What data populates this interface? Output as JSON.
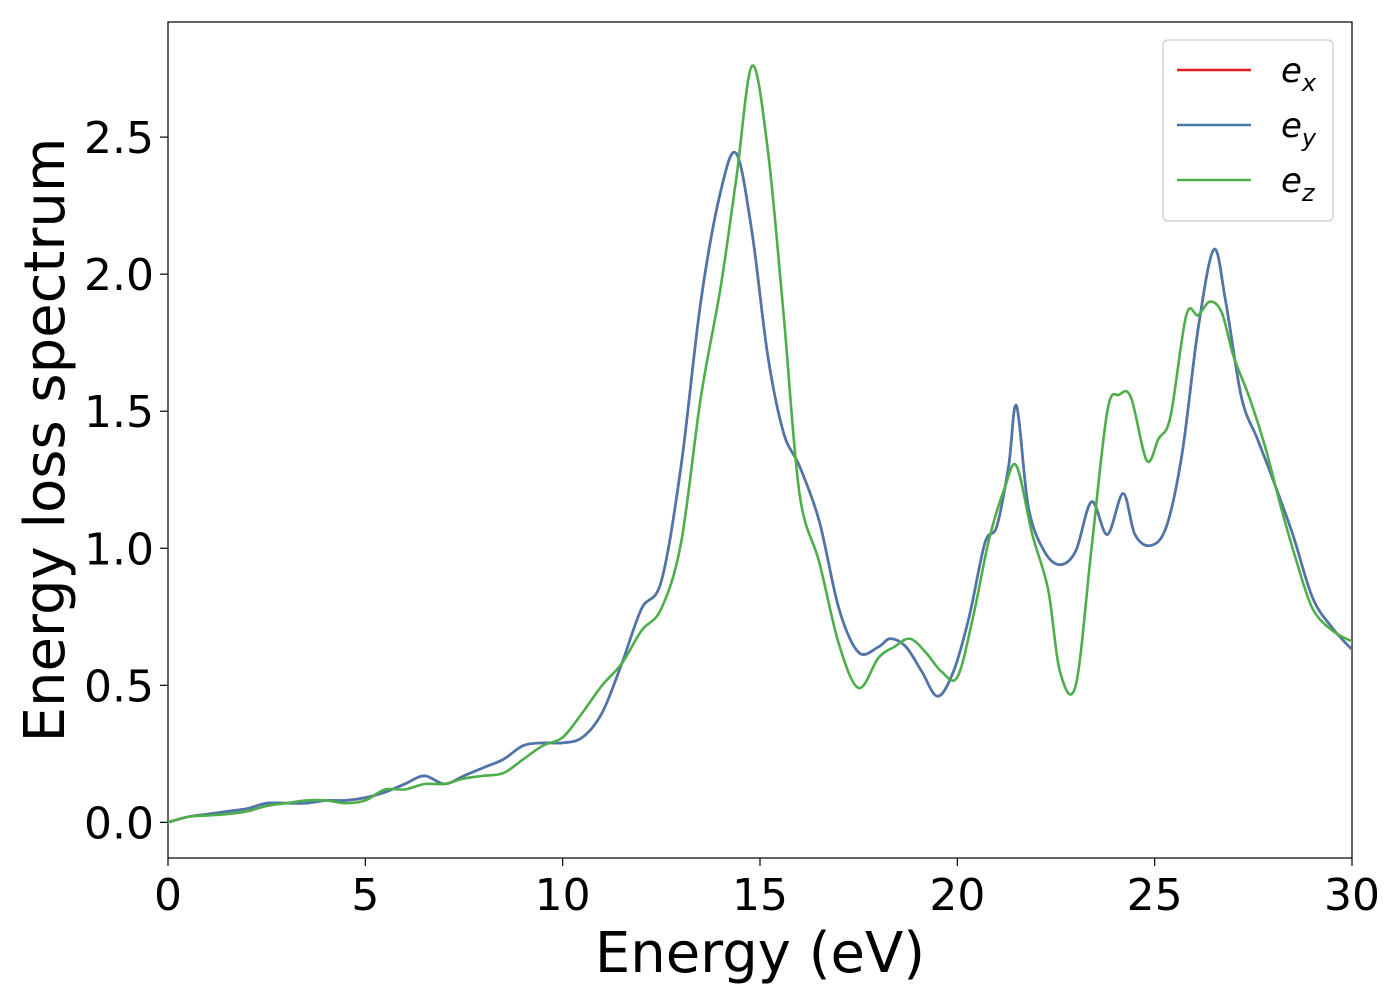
{
  "chart_data": {
    "type": "line",
    "title": "",
    "xlabel": "Energy (eV)",
    "ylabel": "Energy loss spectrum",
    "xlim": [
      0,
      30
    ],
    "ylim": [
      -0.13,
      2.92
    ],
    "xticks": [
      0,
      5,
      10,
      15,
      20,
      25,
      30
    ],
    "xtick_labels": [
      "0",
      "5",
      "10",
      "15",
      "20",
      "25",
      "30"
    ],
    "yticks": [
      0.0,
      0.5,
      1.0,
      1.5,
      2.0,
      2.5
    ],
    "ytick_labels": [
      "0.0",
      "0.5",
      "1.0",
      "1.5",
      "2.0",
      "2.5"
    ],
    "grid": false,
    "legend_position": "top-right",
    "series": [
      {
        "name": "e_x",
        "legend_base": "e",
        "legend_sub": "x",
        "color": "#e41a1c",
        "x": [
          0,
          0.5,
          1.0,
          1.5,
          2.0,
          2.5,
          3.0,
          3.5,
          4.0,
          4.5,
          5.0,
          5.5,
          6.0,
          6.5,
          7.0,
          7.5,
          8.0,
          8.5,
          9.0,
          9.5,
          10.0,
          10.5,
          11.0,
          11.5,
          12.0,
          12.5,
          13.0,
          13.5,
          14.0,
          14.4,
          14.8,
          15.2,
          15.6,
          16.0,
          16.5,
          17.0,
          17.5,
          18.0,
          18.3,
          18.7,
          19.1,
          19.5,
          19.9,
          20.3,
          20.7,
          21.0,
          21.3,
          21.5,
          21.8,
          22.2,
          22.6,
          23.0,
          23.4,
          23.8,
          24.2,
          24.5,
          24.9,
          25.3,
          25.7,
          26.1,
          26.5,
          26.8,
          27.2,
          27.6,
          28.0,
          28.5,
          29.0,
          29.5,
          30.0
        ],
        "y": [
          0.0,
          0.02,
          0.03,
          0.04,
          0.05,
          0.07,
          0.07,
          0.07,
          0.08,
          0.08,
          0.09,
          0.11,
          0.14,
          0.17,
          0.14,
          0.17,
          0.2,
          0.23,
          0.28,
          0.29,
          0.29,
          0.31,
          0.4,
          0.58,
          0.78,
          0.88,
          1.3,
          1.9,
          2.3,
          2.44,
          2.15,
          1.7,
          1.42,
          1.3,
          1.1,
          0.78,
          0.62,
          0.64,
          0.67,
          0.64,
          0.55,
          0.46,
          0.55,
          0.75,
          1.02,
          1.08,
          1.3,
          1.52,
          1.15,
          0.99,
          0.94,
          0.99,
          1.17,
          1.05,
          1.2,
          1.05,
          1.01,
          1.08,
          1.35,
          1.8,
          2.09,
          1.9,
          1.55,
          1.4,
          1.25,
          1.05,
          0.82,
          0.71,
          0.63
        ]
      },
      {
        "name": "e_y",
        "legend_base": "e",
        "legend_sub": "y",
        "color": "#4a78ad",
        "x": [
          0,
          0.5,
          1.0,
          1.5,
          2.0,
          2.5,
          3.0,
          3.5,
          4.0,
          4.5,
          5.0,
          5.5,
          6.0,
          6.5,
          7.0,
          7.5,
          8.0,
          8.5,
          9.0,
          9.5,
          10.0,
          10.5,
          11.0,
          11.5,
          12.0,
          12.5,
          13.0,
          13.5,
          14.0,
          14.4,
          14.8,
          15.2,
          15.6,
          16.0,
          16.5,
          17.0,
          17.5,
          18.0,
          18.3,
          18.7,
          19.1,
          19.5,
          19.9,
          20.3,
          20.7,
          21.0,
          21.3,
          21.5,
          21.8,
          22.2,
          22.6,
          23.0,
          23.4,
          23.8,
          24.2,
          24.5,
          24.9,
          25.3,
          25.7,
          26.1,
          26.5,
          26.8,
          27.2,
          27.6,
          28.0,
          28.5,
          29.0,
          29.5,
          30.0
        ],
        "y": [
          0.0,
          0.02,
          0.03,
          0.04,
          0.05,
          0.07,
          0.07,
          0.07,
          0.08,
          0.08,
          0.09,
          0.11,
          0.14,
          0.17,
          0.14,
          0.17,
          0.2,
          0.23,
          0.28,
          0.29,
          0.29,
          0.31,
          0.4,
          0.58,
          0.78,
          0.88,
          1.3,
          1.9,
          2.3,
          2.44,
          2.15,
          1.7,
          1.42,
          1.3,
          1.1,
          0.78,
          0.62,
          0.64,
          0.67,
          0.64,
          0.55,
          0.46,
          0.55,
          0.75,
          1.02,
          1.08,
          1.3,
          1.52,
          1.15,
          0.99,
          0.94,
          0.99,
          1.17,
          1.05,
          1.2,
          1.05,
          1.01,
          1.08,
          1.35,
          1.8,
          2.09,
          1.9,
          1.55,
          1.4,
          1.25,
          1.05,
          0.82,
          0.71,
          0.63
        ]
      },
      {
        "name": "e_z",
        "legend_base": "e",
        "legend_sub": "z",
        "color": "#4daf4a",
        "x": [
          0,
          0.5,
          1.0,
          1.5,
          2.0,
          2.5,
          3.0,
          3.5,
          4.0,
          4.5,
          5.0,
          5.5,
          6.0,
          6.5,
          7.0,
          7.5,
          8.0,
          8.5,
          9.0,
          9.5,
          10.0,
          10.5,
          11.0,
          11.5,
          12.0,
          12.5,
          13.0,
          13.5,
          14.0,
          14.4,
          14.8,
          15.2,
          15.6,
          16.0,
          16.5,
          17.0,
          17.5,
          18.0,
          18.4,
          18.8,
          19.2,
          19.6,
          20.0,
          20.4,
          20.8,
          21.2,
          21.5,
          21.9,
          22.3,
          22.6,
          23.0,
          23.4,
          23.8,
          24.1,
          24.4,
          24.8,
          25.1,
          25.4,
          25.8,
          26.1,
          26.4,
          26.7,
          27.0,
          27.4,
          27.8,
          28.2,
          28.6,
          29.0,
          29.5,
          30.0
        ],
        "y": [
          0.0,
          0.02,
          0.025,
          0.03,
          0.04,
          0.06,
          0.07,
          0.08,
          0.08,
          0.07,
          0.08,
          0.12,
          0.12,
          0.14,
          0.14,
          0.16,
          0.17,
          0.18,
          0.23,
          0.28,
          0.31,
          0.4,
          0.5,
          0.58,
          0.7,
          0.78,
          1.02,
          1.55,
          1.95,
          2.35,
          2.76,
          2.45,
          1.85,
          1.2,
          0.95,
          0.65,
          0.49,
          0.6,
          0.64,
          0.67,
          0.62,
          0.55,
          0.53,
          0.75,
          1.03,
          1.22,
          1.3,
          1.05,
          0.85,
          0.55,
          0.5,
          1.0,
          1.5,
          1.56,
          1.55,
          1.32,
          1.4,
          1.48,
          1.85,
          1.85,
          1.9,
          1.86,
          1.7,
          1.55,
          1.37,
          1.15,
          0.95,
          0.78,
          0.7,
          0.66
        ]
      }
    ]
  }
}
